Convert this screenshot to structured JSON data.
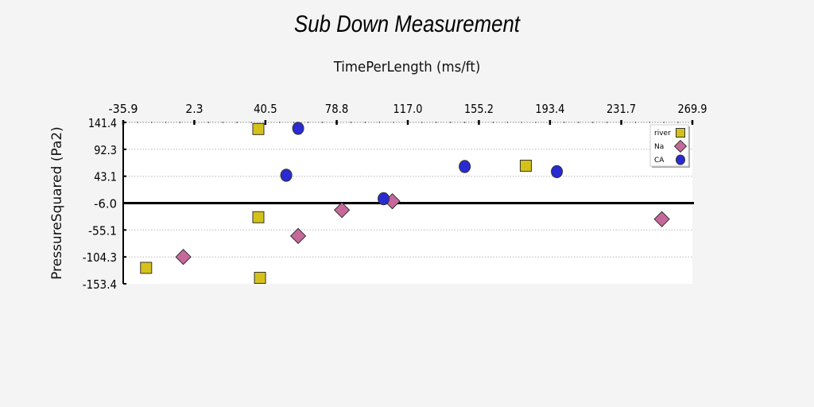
{
  "chart_data": {
    "type": "scatter",
    "title": "Sub Down Measurement",
    "xlabel": "TimePerLength (ms/ft)",
    "ylabel": "PressureSquared (Pa2)",
    "xlim": [
      -35.9,
      269.9
    ],
    "ylim": [
      -153.4,
      141.4
    ],
    "x_ticks": [
      "-35.9",
      "2.3",
      "40.5",
      "78.8",
      "117.0",
      "155.2",
      "193.4",
      "231.7",
      "269.9"
    ],
    "y_ticks": [
      "141.4",
      "92.3",
      "43.1",
      "-6.0",
      "-55.1",
      "-104.3",
      "-153.4"
    ],
    "x_axis_position": "top",
    "grid": true,
    "reference_line_y": -6.0,
    "legend_position": "top-right",
    "series": [
      {
        "name": "river",
        "marker": "square",
        "color": "#d4c21a",
        "points": [
          {
            "x": 36.7,
            "y": 129.3
          },
          {
            "x": 36.7,
            "y": -31.8
          },
          {
            "x": 37.6,
            "y": -142.5
          },
          {
            "x": -23.6,
            "y": -124.3
          },
          {
            "x": 180.4,
            "y": 62.3
          }
        ]
      },
      {
        "name": "Na",
        "marker": "diamond",
        "color": "#c6689a",
        "points": [
          {
            "x": -3.6,
            "y": -104.3
          },
          {
            "x": 58.1,
            "y": -66.0
          },
          {
            "x": 81.6,
            "y": -18.7
          },
          {
            "x": 108.7,
            "y": -2.6
          },
          {
            "x": 253.5,
            "y": -35.3
          }
        ]
      },
      {
        "name": "CA",
        "marker": "circle",
        "color": "#2a2ad2",
        "points": [
          {
            "x": 58.1,
            "y": 130.6
          },
          {
            "x": 51.7,
            "y": 44.9
          },
          {
            "x": 104.0,
            "y": 2.0
          },
          {
            "x": 147.6,
            "y": 60.8
          },
          {
            "x": 197.1,
            "y": 51.5
          }
        ]
      }
    ]
  }
}
